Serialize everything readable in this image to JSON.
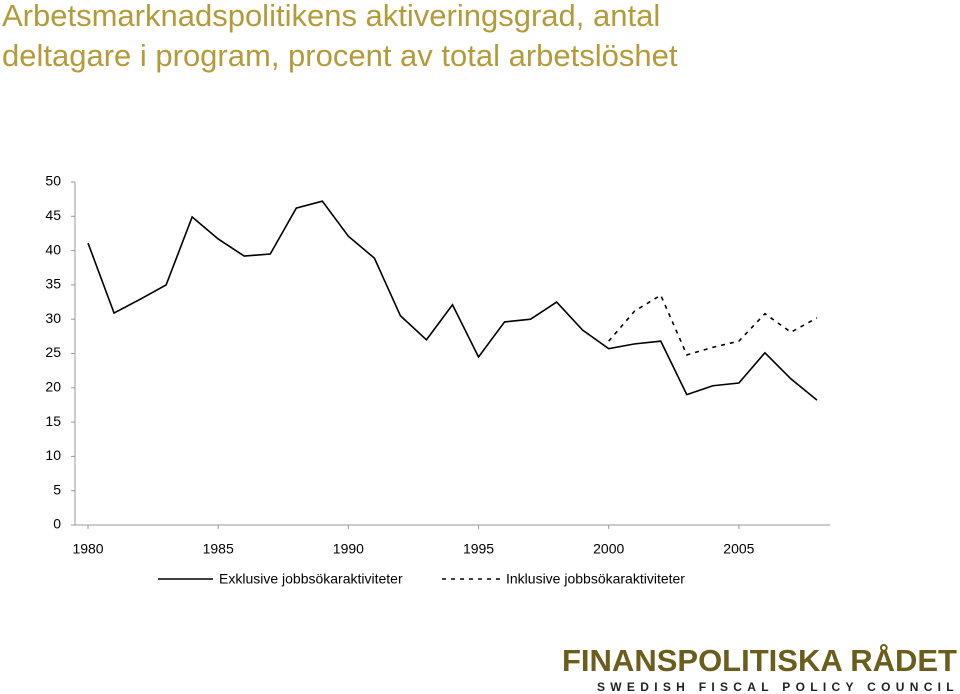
{
  "chart_data": {
    "type": "line",
    "title": "Arbetsmarknadspolitikens aktiveringsgrad, antal deltagare i program, procent av total arbetslöshet",
    "x": [
      1980,
      1981,
      1982,
      1983,
      1984,
      1985,
      1986,
      1987,
      1988,
      1989,
      1990,
      1991,
      1992,
      1993,
      1994,
      1995,
      1996,
      1997,
      1998,
      1999,
      2000,
      2001,
      2002,
      2003,
      2004,
      2005,
      2006,
      2007,
      2008
    ],
    "series": [
      {
        "name": "Exklusive jobbsökaraktiviteter",
        "color": "#000000",
        "dash": false,
        "values": [
          41.1,
          30.9,
          32.9,
          35.0,
          44.9,
          41.7,
          39.2,
          39.5,
          46.2,
          47.2,
          42.1,
          38.9,
          30.5,
          27.0,
          32.1,
          24.5,
          29.6,
          30.0,
          32.5,
          28.4,
          25.7,
          26.4,
          26.8,
          19.0,
          20.3,
          20.7,
          25.1,
          21.3,
          18.2
        ]
      },
      {
        "name": "Inklusive jobbsökaraktiviteter",
        "color": "#000000",
        "dash": true,
        "values": [
          null,
          null,
          null,
          null,
          null,
          null,
          null,
          null,
          null,
          null,
          null,
          null,
          null,
          null,
          null,
          null,
          null,
          null,
          null,
          null,
          26.8,
          31.2,
          33.5,
          24.8,
          25.9,
          26.8,
          30.8,
          28.1,
          30.2
        ]
      }
    ],
    "xlim": [
      1979.5,
      2008.5
    ],
    "xticks": [
      1980,
      1985,
      1990,
      1995,
      2000,
      2005
    ],
    "ylim": [
      0,
      50
    ],
    "yticks": [
      0,
      5,
      10,
      15,
      20,
      25,
      30,
      35,
      40,
      45,
      50
    ],
    "grid": false,
    "legend": "bottom"
  },
  "logo": {
    "name": "FINANSPOLITISKA RÅDET",
    "tagline": "SWEDISH FISCAL POLICY COUNCIL"
  }
}
